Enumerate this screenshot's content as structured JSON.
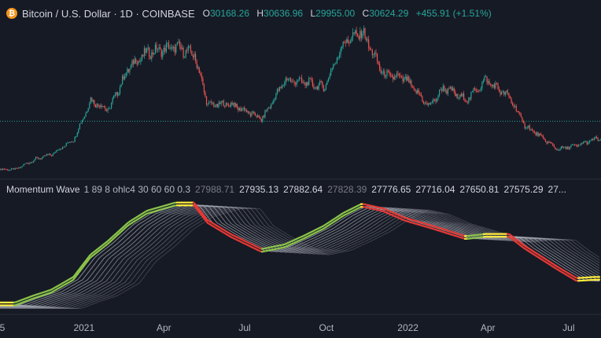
{
  "header": {
    "coin_icon": "bitcoin-icon",
    "title": "Bitcoin / U.S. Dollar · 1D · COINBASE",
    "ohlc": [
      {
        "label": "O",
        "value": "30168.26"
      },
      {
        "label": "H",
        "value": "30636.96"
      },
      {
        "label": "L",
        "value": "29955.00"
      },
      {
        "label": "C",
        "value": "30624.29"
      }
    ],
    "change": "+455.91 (+1.51%)"
  },
  "indicator": {
    "name": "Momentum Wave",
    "params": "1 89 8 ohlc4 30 60 60 0.3",
    "values": [
      "27988.71",
      "27935.13",
      "27882.64",
      "27828.39",
      "27776.65",
      "27716.04",
      "27650.81",
      "27575.29",
      "27..."
    ]
  },
  "colors": {
    "background": "#161a25",
    "up": "#26a69a",
    "down": "#ef5350",
    "wave_up": "#8bc34a",
    "wave_down": "#e53935",
    "wave_flat": "#ffeb3b",
    "ribbon": "#b2b5be",
    "last_price_line": "#26a69a"
  },
  "chart_data": [
    {
      "type": "candlestick",
      "x": [
        "2020-10-15",
        "2020-11-05",
        "2020-11-25",
        "2020-12-20",
        "2021-01-08",
        "2021-01-28",
        "2021-02-20",
        "2021-03-13",
        "2021-04-14",
        "2021-05-05",
        "2021-05-20",
        "2021-06-15",
        "2021-07-20",
        "2021-08-15",
        "2021-09-07",
        "2021-09-28",
        "2021-10-20",
        "2021-11-10",
        "2021-12-04",
        "2021-12-28",
        "2022-01-24",
        "2022-02-10",
        "2022-03-07",
        "2022-03-29",
        "2022-04-25",
        "2022-05-12",
        "2022-06-18",
        "2022-07-10",
        "2022-07-30"
      ],
      "close": [
        11500,
        15300,
        17500,
        23500,
        39000,
        35000,
        52000,
        58000,
        60000,
        57000,
        37000,
        37500,
        31500,
        47000,
        46000,
        44000,
        62000,
        66000,
        49000,
        47500,
        36500,
        44000,
        39000,
        47000,
        40000,
        29000,
        19500,
        21000,
        23500
      ],
      "last_price": 30624.29,
      "ylim": [
        9500,
        70000
      ]
    },
    {
      "type": "line",
      "title": "Momentum Wave",
      "x": [
        "2020-10-15",
        "2020-11-05",
        "2020-11-25",
        "2020-12-20",
        "2021-01-08",
        "2021-01-28",
        "2021-02-20",
        "2021-03-13",
        "2021-04-14",
        "2021-05-05",
        "2021-05-20",
        "2021-06-15",
        "2021-07-20",
        "2021-08-15",
        "2021-09-07",
        "2021-09-28",
        "2021-10-20",
        "2021-11-10",
        "2021-12-04",
        "2021-12-28",
        "2022-01-24",
        "2022-02-10",
        "2022-03-07",
        "2022-03-29",
        "2022-04-25",
        "2022-05-12",
        "2022-06-18",
        "2022-07-10",
        "2022-07-30"
      ],
      "series": [
        {
          "values": [
            11500,
            14500,
            17000,
            22500,
            32000,
            38000,
            46000,
            51000,
            54500,
            54500,
            47000,
            41000,
            34500,
            36500,
            40500,
            44500,
            50000,
            54000,
            52000,
            48000,
            45000,
            43000,
            40000,
            41000,
            41000,
            36000,
            27000,
            22000,
            22500
          ]
        }
      ],
      "ylim": [
        10000,
        58000
      ]
    }
  ],
  "x_axis": {
    "ticks": [
      {
        "date": "2020-10-01",
        "label": "5"
      },
      {
        "date": "2021-01-01",
        "label": "2021"
      },
      {
        "date": "2021-04-01",
        "label": "Apr"
      },
      {
        "date": "2021-07-01",
        "label": "Jul"
      },
      {
        "date": "2021-10-01",
        "label": "Oct"
      },
      {
        "date": "2022-01-01",
        "label": "2022"
      },
      {
        "date": "2022-04-01",
        "label": "Apr"
      },
      {
        "date": "2022-07-01",
        "label": "Jul"
      }
    ]
  }
}
